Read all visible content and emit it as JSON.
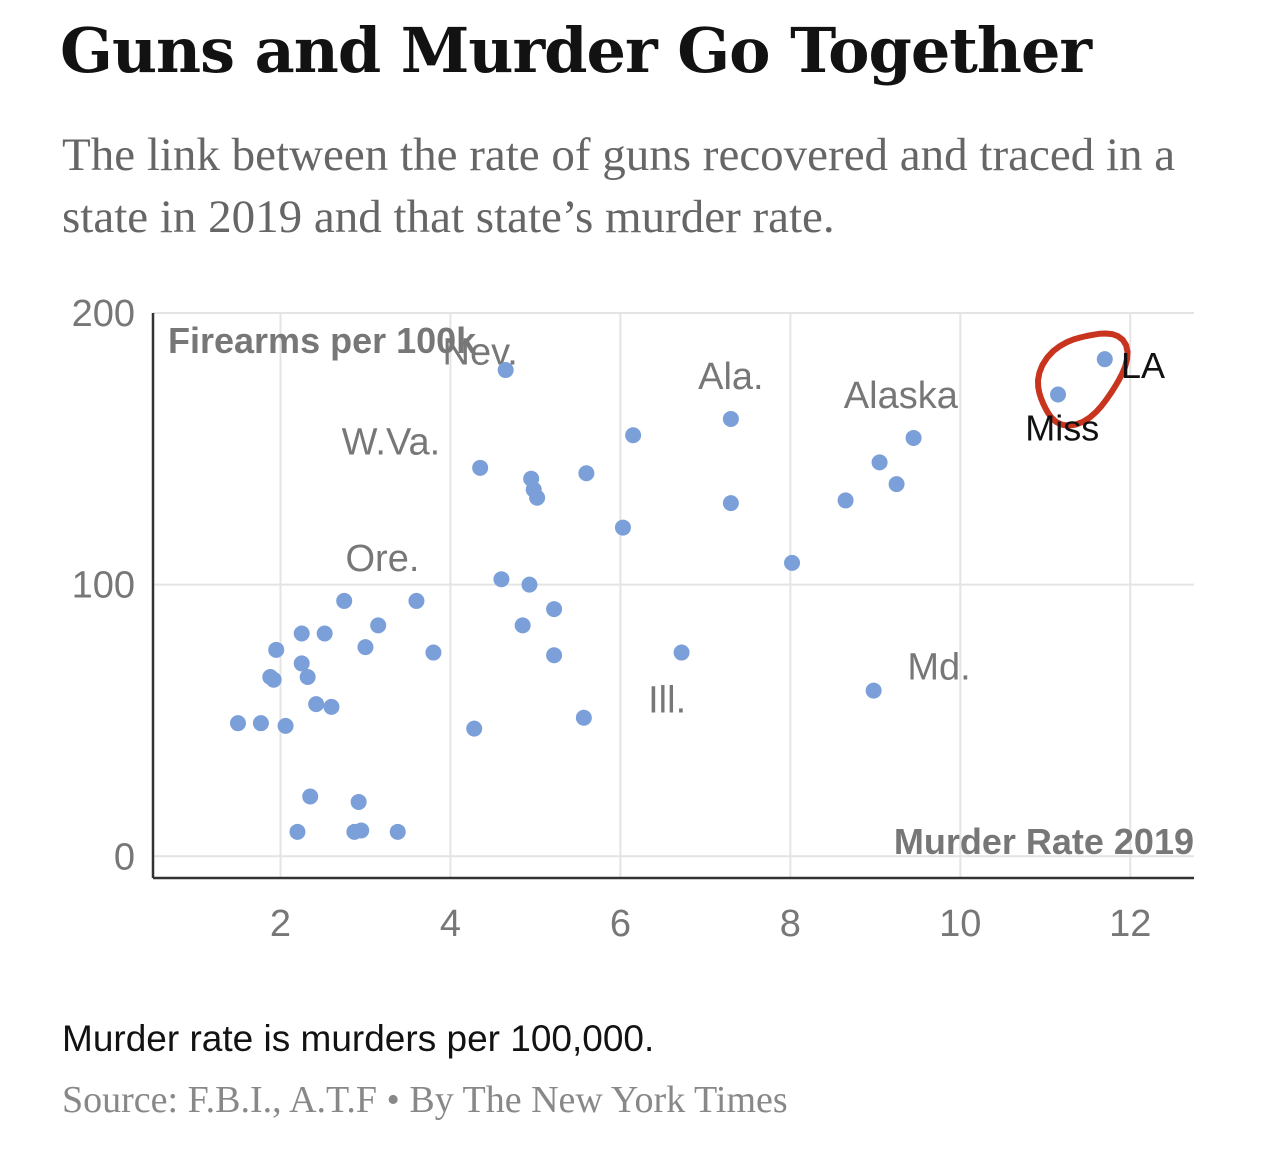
{
  "header": {
    "title": "Guns and Murder Go Together",
    "subtitle": "The link between the rate of guns recovered and traced in a state in 2019 and that state’s murder rate."
  },
  "footer": {
    "note": "Murder rate is murders per 100,000.",
    "source": "Source: F.B.I., A.T.F • By The New York Times"
  },
  "colors": {
    "point": "#7b9fd8",
    "circle": "#c8341d",
    "grid": "#e4e4e4",
    "axis": "#333333",
    "label": "#777777"
  },
  "chart_data": {
    "type": "scatter",
    "title": "",
    "xlabel": "Murder Rate 2019",
    "ylabel": "Firearms per 100k",
    "xlim": [
      0.5,
      12.75
    ],
    "ylim": [
      -8,
      200
    ],
    "grid": true,
    "x_ticks": [
      2,
      4,
      6,
      8,
      10,
      12
    ],
    "x_tick_labels": [
      "2",
      "4",
      "6",
      "8",
      "10",
      "12"
    ],
    "y_ticks": [
      0,
      100,
      200
    ],
    "y_tick_labels": [
      "0",
      "100",
      "200"
    ],
    "points": [
      {
        "x": 4.65,
        "y": 179
      },
      {
        "x": 7.3,
        "y": 161
      },
      {
        "x": 6.15,
        "y": 155
      },
      {
        "x": 9.45,
        "y": 154
      },
      {
        "x": 9.05,
        "y": 145
      },
      {
        "x": 4.35,
        "y": 143
      },
      {
        "x": 5.6,
        "y": 141
      },
      {
        "x": 4.95,
        "y": 139
      },
      {
        "x": 4.98,
        "y": 135
      },
      {
        "x": 5.02,
        "y": 132
      },
      {
        "x": 9.25,
        "y": 137
      },
      {
        "x": 8.65,
        "y": 131
      },
      {
        "x": 7.3,
        "y": 130
      },
      {
        "x": 6.03,
        "y": 121
      },
      {
        "x": 8.02,
        "y": 108
      },
      {
        "x": 4.6,
        "y": 102
      },
      {
        "x": 4.93,
        "y": 100
      },
      {
        "x": 2.75,
        "y": 94
      },
      {
        "x": 3.6,
        "y": 94
      },
      {
        "x": 5.22,
        "y": 91
      },
      {
        "x": 3.15,
        "y": 85
      },
      {
        "x": 4.85,
        "y": 85
      },
      {
        "x": 2.25,
        "y": 82
      },
      {
        "x": 2.52,
        "y": 82
      },
      {
        "x": 1.95,
        "y": 76
      },
      {
        "x": 3.0,
        "y": 77
      },
      {
        "x": 3.8,
        "y": 75
      },
      {
        "x": 5.22,
        "y": 74
      },
      {
        "x": 6.72,
        "y": 75
      },
      {
        "x": 2.25,
        "y": 71
      },
      {
        "x": 2.32,
        "y": 66
      },
      {
        "x": 1.88,
        "y": 66
      },
      {
        "x": 1.92,
        "y": 65
      },
      {
        "x": 2.42,
        "y": 56
      },
      {
        "x": 2.6,
        "y": 55
      },
      {
        "x": 8.98,
        "y": 61
      },
      {
        "x": 5.57,
        "y": 51
      },
      {
        "x": 1.5,
        "y": 49
      },
      {
        "x": 1.77,
        "y": 49
      },
      {
        "x": 2.06,
        "y": 48
      },
      {
        "x": 4.28,
        "y": 47
      },
      {
        "x": 2.35,
        "y": 22
      },
      {
        "x": 2.92,
        "y": 20
      },
      {
        "x": 2.2,
        "y": 9
      },
      {
        "x": 2.87,
        "y": 9
      },
      {
        "x": 2.95,
        "y": 9.5
      },
      {
        "x": 3.38,
        "y": 9
      },
      {
        "x": 11.15,
        "y": 170
      },
      {
        "x": 11.7,
        "y": 183
      }
    ],
    "annotations": [
      {
        "text": "Nev.",
        "x": 4.35,
        "y": 181
      },
      {
        "text": "Ala.",
        "x": 7.3,
        "y": 172
      },
      {
        "text": "Alaska",
        "x": 9.3,
        "y": 165
      },
      {
        "text": "W.Va.",
        "x": 3.3,
        "y": 148
      },
      {
        "text": "Ore.",
        "x": 3.2,
        "y": 105
      },
      {
        "text": "Md.",
        "x": 9.75,
        "y": 65
      },
      {
        "text": "Ill.",
        "x": 6.55,
        "y": 53
      }
    ],
    "handwritten_labels": [
      {
        "text": "LA",
        "x": 12.15,
        "y": 176
      },
      {
        "text": "Miss",
        "x": 11.2,
        "y": 153
      }
    ]
  }
}
